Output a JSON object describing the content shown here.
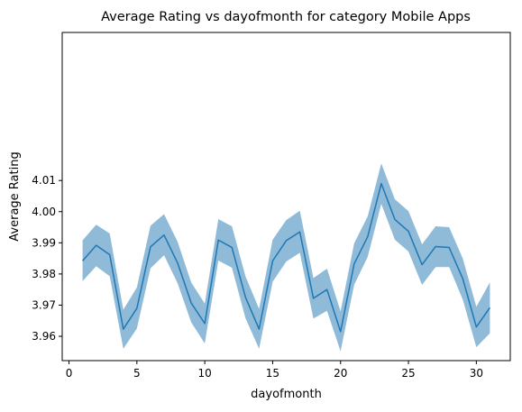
{
  "chart_data": {
    "type": "line",
    "title": "Average Rating vs dayofmonth for category Mobile Apps",
    "xlabel": "dayofmonth",
    "ylabel": "Average Rating",
    "xlim": [
      -0.5,
      32.5
    ],
    "ylim": [
      3.9522,
      4.0575
    ],
    "xticks": [
      0,
      5,
      10,
      15,
      20,
      25,
      30
    ],
    "xtick_labels": [
      "0",
      "5",
      "10",
      "15",
      "20",
      "25",
      "30"
    ],
    "yticks": [
      3.96,
      3.97,
      3.98,
      3.99,
      4.0,
      4.01
    ],
    "ytick_labels": [
      "3.96",
      "3.97",
      "3.98",
      "3.99",
      "4.00",
      "4.01"
    ],
    "grid": false,
    "series": [
      {
        "color": "#1f77b4",
        "band_color": "#1f77b4",
        "x": [
          1,
          2,
          3,
          4,
          5,
          6,
          7,
          8,
          9,
          10,
          11,
          12,
          13,
          14,
          15,
          16,
          17,
          18,
          19,
          20,
          21,
          22,
          23,
          24,
          25,
          26,
          27,
          28,
          29,
          30,
          31
        ],
        "values": [
          3.9842,
          3.9892,
          3.9862,
          3.9623,
          3.969,
          3.9887,
          3.9925,
          3.9835,
          3.9707,
          3.9641,
          3.9909,
          3.9885,
          3.9725,
          3.9623,
          3.9842,
          3.9907,
          3.9935,
          3.9722,
          3.975,
          3.9615,
          3.9832,
          3.992,
          4.009,
          3.9975,
          3.9937,
          3.983,
          3.9888,
          3.9885,
          3.9785,
          3.963,
          3.9692
        ],
        "lower": [
          3.9777,
          3.9825,
          3.9793,
          3.956,
          3.9625,
          3.9818,
          3.986,
          3.977,
          3.9645,
          3.9577,
          3.9843,
          3.982,
          3.9658,
          3.956,
          3.9775,
          3.984,
          3.9868,
          3.9657,
          3.9682,
          3.9552,
          3.9765,
          3.9855,
          4.0025,
          3.991,
          3.9872,
          3.9765,
          3.9822,
          3.9822,
          3.9718,
          3.9565,
          3.961
        ],
        "upper": [
          3.9908,
          3.9958,
          3.993,
          3.9685,
          3.9757,
          3.9955,
          3.9992,
          3.9903,
          3.9773,
          3.9705,
          3.9976,
          3.9953,
          3.9792,
          3.9688,
          3.991,
          3.9973,
          4.0003,
          3.9787,
          3.9817,
          3.968,
          3.9898,
          3.9985,
          4.0155,
          4.004,
          4.0002,
          3.9895,
          3.9953,
          3.995,
          3.985,
          3.9695,
          3.9773
        ]
      }
    ]
  }
}
